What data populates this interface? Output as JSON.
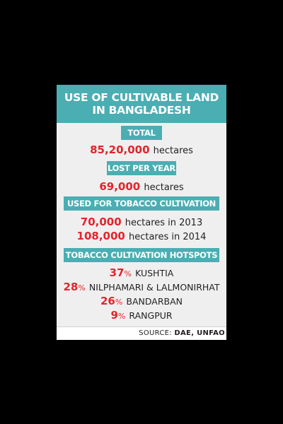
{
  "title": {
    "line1": "USE OF CULTIVABLE LAND",
    "line2": "IN BANGLADESH"
  },
  "total": {
    "label": "TOTAL",
    "value": "85,20,000",
    "unit": "hectares"
  },
  "lost_per_year": {
    "label": "LOST PER YEAR",
    "value": "69,000",
    "unit": "hectares"
  },
  "tobacco_cultivation": {
    "label": "USED FOR TOBACCO CULTIVATION",
    "entries": [
      {
        "value": "70,000",
        "text": "hectares in 2013"
      },
      {
        "value": "108,000",
        "text": "hectares in 2014"
      }
    ]
  },
  "hotspots": {
    "label": "TOBACCO CULTIVATION HOTSPOTS",
    "items": [
      {
        "value": "37",
        "unit": "%",
        "place": "KUSHTIA"
      },
      {
        "value": "28",
        "unit": "%",
        "place": "NILPHAMARI & LALMONIRHAT"
      },
      {
        "value": "26",
        "unit": "%",
        "place": "BANDARBAN"
      },
      {
        "value": "9",
        "unit": "%",
        "place": "RANGPUR"
      }
    ]
  },
  "source": {
    "prefix": "SOURCE:",
    "names": "DAE, UNFAO"
  },
  "colors": {
    "accent": "#4aaeb3",
    "highlight": "#e3242b",
    "background": "#efeff0"
  }
}
